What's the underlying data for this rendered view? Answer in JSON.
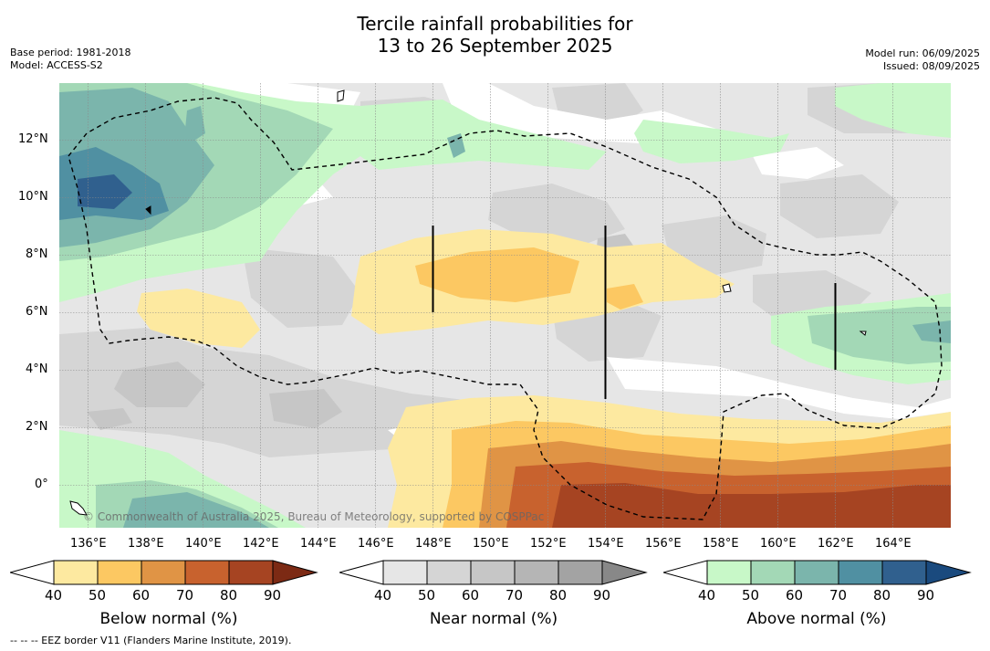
{
  "title_line1": "Tercile rainfall probabilities for",
  "title_line2": "13 to 26 September 2025",
  "base_period": "Base period: 1981-2018",
  "model": "Model: ACCESS-S2",
  "model_run": "Model run: 06/09/2025",
  "issued": "Issued: 08/09/2025",
  "map": {
    "lon_labels": [
      "136°E",
      "138°E",
      "140°E",
      "142°E",
      "144°E",
      "146°E",
      "148°E",
      "150°E",
      "152°E",
      "154°E",
      "156°E",
      "158°E",
      "160°E",
      "162°E",
      "164°E"
    ],
    "lat_labels": [
      "12°N",
      "10°N",
      "8°N",
      "6°N",
      "4°N",
      "2°N",
      "0°"
    ],
    "copyright": "© Commonwealth of Australia 2025, Bureau of Meteorology, supported by COSPPac"
  },
  "colorbars": {
    "below": {
      "label": "Below normal (%)",
      "ticks": [
        "40",
        "50",
        "60",
        "70",
        "80",
        "90"
      ],
      "colors": [
        "#ffffff",
        "#fde9a0",
        "#fcc862",
        "#e09445",
        "#c8622e",
        "#a64422",
        "#7c2a14"
      ]
    },
    "near": {
      "label": "Near normal (%)",
      "ticks": [
        "40",
        "50",
        "60",
        "70",
        "80",
        "90"
      ],
      "colors": [
        "#ffffff",
        "#e6e6e6",
        "#d5d5d5",
        "#c6c6c6",
        "#b5b5b5",
        "#a3a3a3",
        "#888888"
      ]
    },
    "above": {
      "label": "Above normal (%)",
      "ticks": [
        "40",
        "50",
        "60",
        "70",
        "80",
        "90"
      ],
      "colors": [
        "#ffffff",
        "#c8f8c8",
        "#a3d8b6",
        "#7bb5ac",
        "#5090a2",
        "#30608e",
        "#1a4a7e"
      ]
    }
  },
  "footer": "-- -- -- EEZ border V11 (Flanders Marine Institute, 2019)."
}
